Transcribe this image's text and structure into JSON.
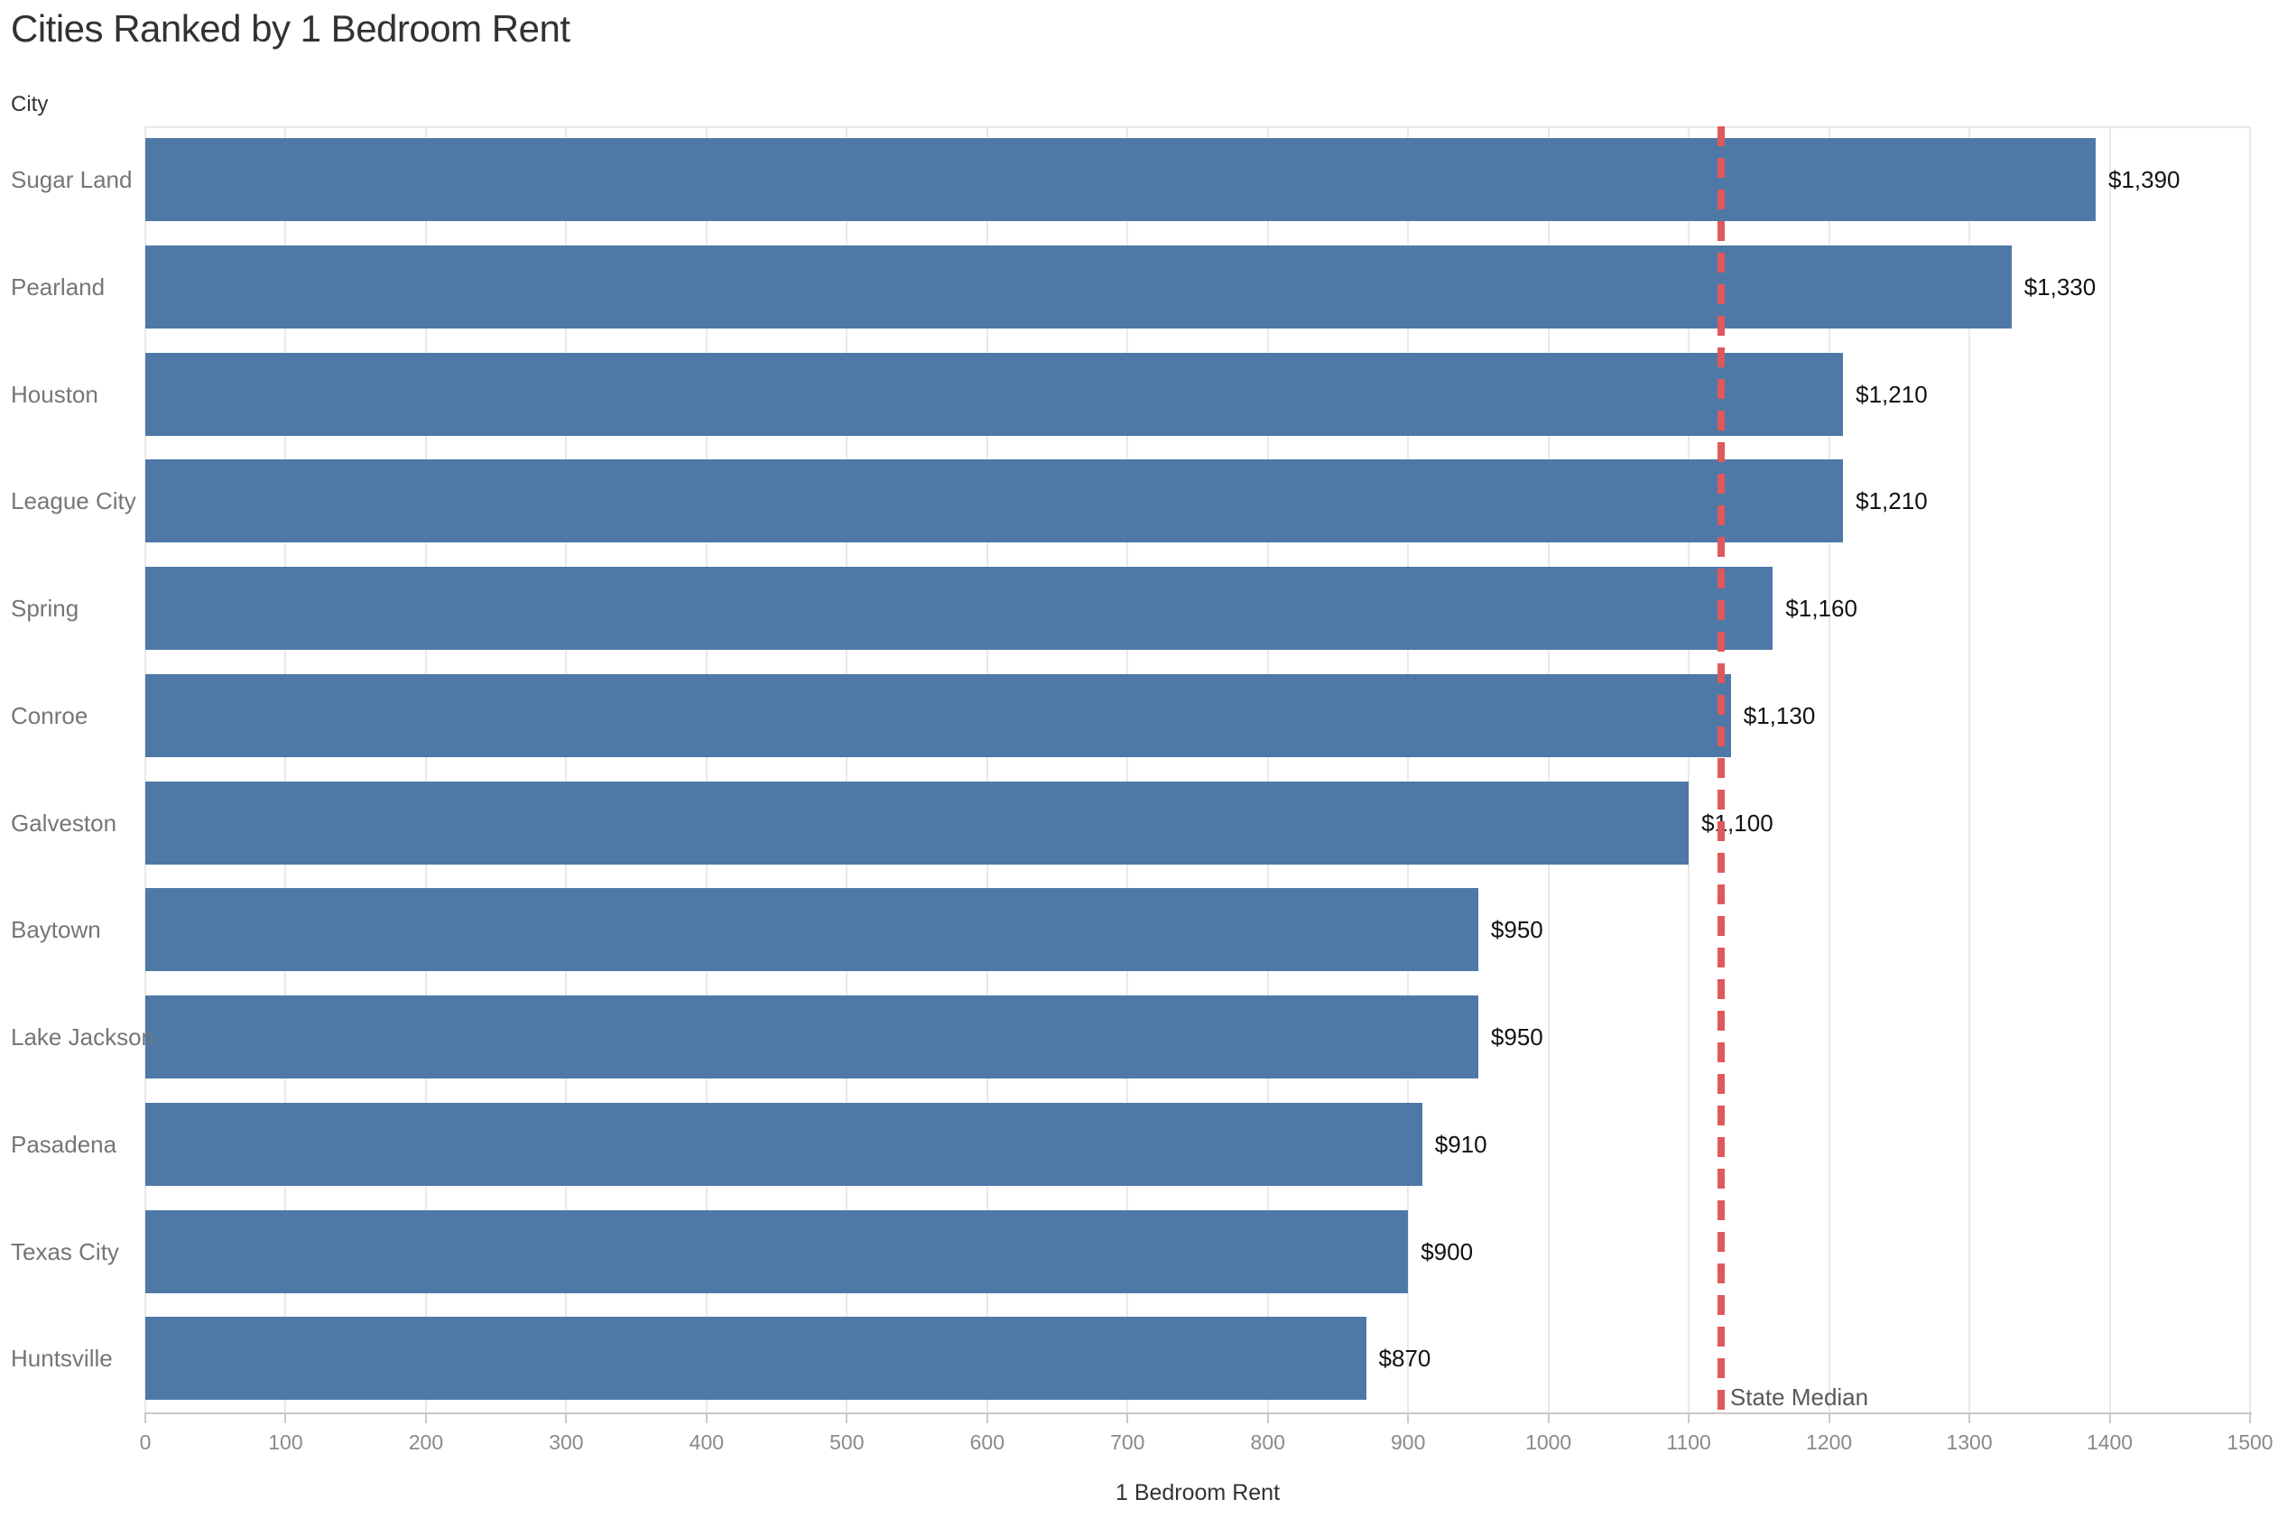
{
  "chart_data": {
    "type": "bar",
    "orientation": "horizontal",
    "title": "Cities Ranked by 1 Bedroom Rent",
    "row_header": "City",
    "xlabel": "1 Bedroom Rent",
    "categories": [
      "Sugar Land",
      "Pearland",
      "Houston",
      "League City",
      "Spring",
      "Conroe",
      "Galveston",
      "Baytown",
      "Lake Jackson",
      "Pasadena",
      "Texas City",
      "Huntsville"
    ],
    "values": [
      1390,
      1330,
      1210,
      1210,
      1160,
      1130,
      1100,
      950,
      950,
      910,
      900,
      870
    ],
    "value_labels": [
      "$1,390",
      "$1,330",
      "$1,210",
      "$1,210",
      "$1,160",
      "$1,130",
      "$1,100",
      "$950",
      "$950",
      "$910",
      "$900",
      "$870"
    ],
    "xlim": [
      0,
      1500
    ],
    "x_ticks": [
      0,
      100,
      200,
      300,
      400,
      500,
      600,
      700,
      800,
      900,
      1000,
      1100,
      1200,
      1300,
      1400,
      1500
    ],
    "grid": true,
    "legend": "none",
    "reference_line": {
      "label": "State Median",
      "value": 1123,
      "style": "dashed"
    },
    "colors": {
      "bar": "#4e79a7",
      "reference_line": "#e0585a",
      "gridline": "#e9e9e9",
      "axis_line": "#c9c9c9",
      "title_text": "#323232",
      "row_header_text": "#333333",
      "city_label_text": "#767676",
      "value_label_text": "#121212",
      "tick_label_text": "#8a8a8a",
      "axis_title_text": "#333333",
      "reference_label_text": "#595959"
    }
  }
}
